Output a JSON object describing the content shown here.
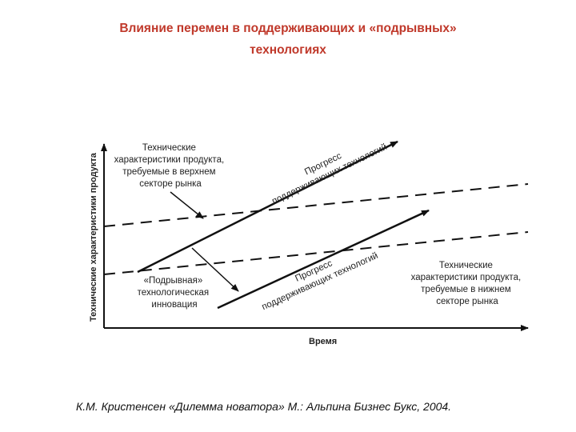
{
  "slide": {
    "title_line1": "Влияние перемен в поддерживающих и «подрывных»",
    "title_line2": "технологиях",
    "caption": "К.М. Кристенсен «Дилемма новатора» М.: Альпина Бизнес Букс, 2004."
  },
  "diagram": {
    "y_axis_label": "Технические характеристики продукта",
    "x_axis_label": "Время",
    "upper_market": [
      "Технические",
      "характеристики продукта,",
      "требуемые в верхнем",
      "секторе рынка"
    ],
    "upper_progress": [
      "Прогресс",
      "поддерживающих технологий"
    ],
    "disruptive": [
      "«Подрывная»",
      "технологическая",
      "инновация"
    ],
    "lower_progress": [
      "Прогресс",
      "поддерживающих технологий"
    ],
    "lower_market": [
      "Технические",
      "характеристики продукта,",
      "требуемые в нижнем",
      "секторе рынка"
    ],
    "line_color": "#111111",
    "title_color": "#c0392b"
  }
}
